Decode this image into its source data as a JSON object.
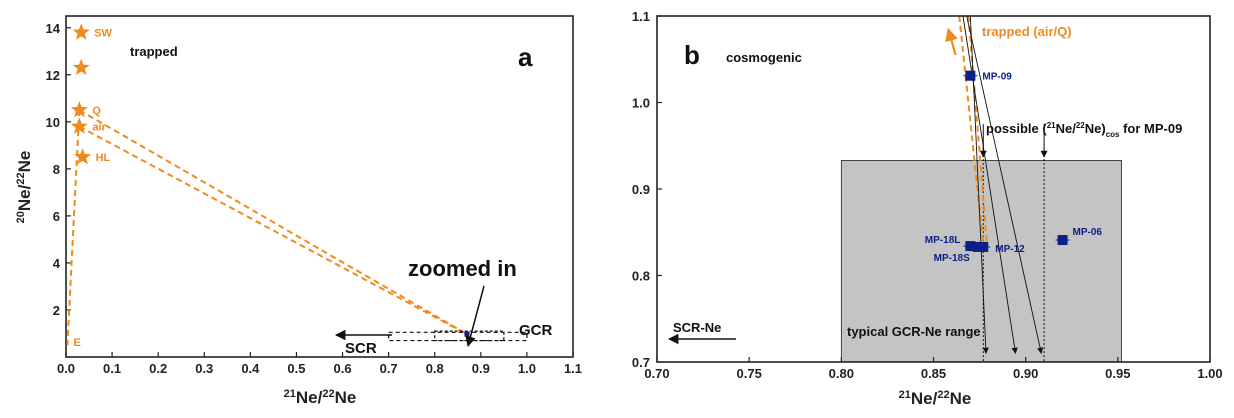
{
  "chart_data": [
    {
      "type": "scatter",
      "panel_label": "a",
      "xlabel": "²¹Ne/²²Ne",
      "ylabel": "²⁰Ne/²²Ne",
      "xlim": [
        0.0,
        1.1
      ],
      "ylim": [
        0,
        14.5
      ],
      "xticks": [
        "0.0",
        "0.1",
        "0.2",
        "0.3",
        "0.4",
        "0.5",
        "0.6",
        "0.7",
        "0.8",
        "0.9",
        "1.0",
        "1.1"
      ],
      "yticks": [
        "2",
        "4",
        "6",
        "8",
        "10",
        "12",
        "14"
      ],
      "annotations": {
        "trapped": "trapped",
        "zoomed": "zoomed in",
        "gcr": "GCR",
        "scr": "SCR"
      },
      "points": [
        {
          "label": "SW",
          "x": 0.033,
          "y": 13.8
        },
        {
          "label": "",
          "x": 0.033,
          "y": 12.3
        },
        {
          "label": "Q",
          "x": 0.029,
          "y": 10.5
        },
        {
          "label": "air",
          "x": 0.029,
          "y": 9.8
        },
        {
          "label": "HL",
          "x": 0.036,
          "y": 8.5
        },
        {
          "label": "E",
          "x": 0.003,
          "y": 0.5
        }
      ],
      "sample_point": {
        "x": 0.87,
        "y": 0.97
      },
      "mixing_lines": [
        {
          "x1": 0.029,
          "y1": 10.5,
          "x2": 0.87,
          "y2": 0.97
        },
        {
          "x1": 0.029,
          "y1": 9.8,
          "x2": 0.87,
          "y2": 0.97
        }
      ],
      "zoom_box": {
        "x1": 0.8,
        "x2": 0.95,
        "y1": 0.7,
        "y2": 1.1
      },
      "gcr_box": {
        "x1": 0.7,
        "x2": 1.0,
        "y1": 0.7,
        "y2": 1.05
      }
    },
    {
      "type": "scatter",
      "panel_label": "b",
      "xlabel": "²¹Ne/²²Ne",
      "ylabel": "",
      "xlim": [
        0.7,
        1.0
      ],
      "ylim": [
        0.7,
        1.1
      ],
      "xticks": [
        "0.70",
        "0.75",
        "0.80",
        "0.85",
        "0.90",
        "0.95",
        "1.00"
      ],
      "yticks": [
        "0.7",
        "0.8",
        "0.9",
        "1.0",
        "1.1"
      ],
      "annotations": {
        "cosmogenic": "cosmogenic",
        "trapped": "trapped (air/Q)",
        "possible_pre": "possible (",
        "possible_sup": "21",
        "possible_mid": "Ne/",
        "possible_sup2": "22",
        "possible_mid2": "Ne)",
        "possible_sub": "cos",
        "possible_post": " for MP-09",
        "gcr_range": "typical GCR-Ne range",
        "scr": "SCR-Ne"
      },
      "gcr_range_box": {
        "x1": 0.8,
        "x2": 0.952,
        "y1": 0.7,
        "y2": 0.933
      },
      "possible_values_x": [
        0.877,
        0.91
      ],
      "samples": [
        {
          "label": "MP-09",
          "x": 0.87,
          "y": 1.031
        },
        {
          "label": "MP-18L",
          "x": 0.87,
          "y": 0.834
        },
        {
          "label": "MP-18S",
          "x": 0.874,
          "y": 0.833
        },
        {
          "label": "MP-12",
          "x": 0.877,
          "y": 0.833
        },
        {
          "label": "MP-06",
          "x": 0.92,
          "y": 0.841
        }
      ]
    }
  ]
}
